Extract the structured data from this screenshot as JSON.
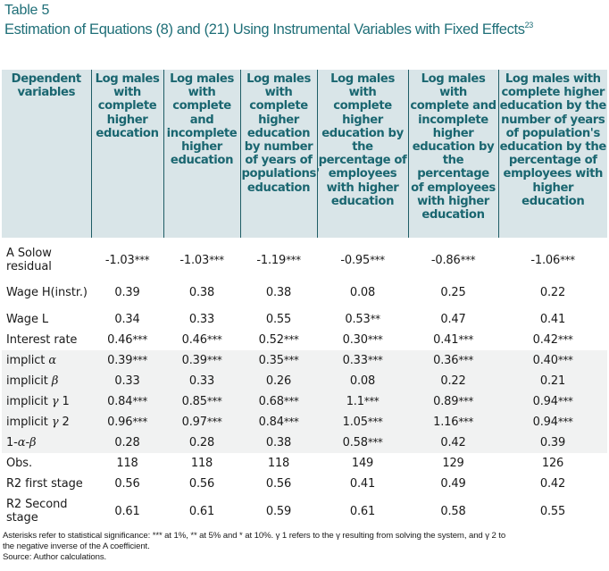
{
  "title": {
    "label": "Table 5",
    "caption": "Estimation of Equations (8) and (21) Using Instrumental Variables with Fixed Effects",
    "footnote_ref": "23"
  },
  "colors": {
    "title_text": "#1f6f78",
    "header_bg": "#d9e5e8",
    "header_text": "#1a6670",
    "header_divider": "#1f5d66",
    "shaded_row_bg": "#f1f2f2"
  },
  "table": {
    "headers": [
      "Dependent variables",
      "Log males with complete higher education",
      "Log males with complete and incomplete higher education",
      "Log males with complete higher education by number of years of populations' education",
      "Log males with complete higher education by the percentage of employees with higher education",
      "Log males with complete and incomplete higher education by the percentage of employees with higher education",
      "Log males with complete higher education by the number of years of population's education by the percentage of employees with higher education"
    ],
    "rows": [
      {
        "label": "A Solow residual",
        "values": [
          "-1.03***",
          "-1.03***",
          "-1.19***",
          "-0.95***",
          "-0.86***",
          "-1.06***"
        ]
      },
      {
        "label": "Wage H(instr.)",
        "values": [
          "0.39",
          "0.38",
          "0.38",
          "0.08",
          "0.25",
          "0.22"
        ]
      },
      {
        "label": "Wage L",
        "values": [
          "0.34",
          "0.33",
          "0.55",
          "0.53**",
          "0.47",
          "0.41"
        ]
      },
      {
        "label": "Interest rate",
        "values": [
          "0.46***",
          "0.46***",
          "0.52***",
          "0.30***",
          "0.41***",
          "0.42***"
        ]
      },
      {
        "label": "implict α",
        "values": [
          "0.39***",
          "0.39***",
          "0.35***",
          "0.33***",
          "0.36***",
          "0.40***"
        ]
      },
      {
        "label": "implicit β",
        "values": [
          "0.33",
          "0.33",
          "0.26",
          "0.08",
          "0.22",
          "0.21"
        ]
      },
      {
        "label": "implicit γ 1",
        "values": [
          "0.84***",
          "0.85***",
          "0.68***",
          "1.1***",
          "0.89***",
          "0.94***"
        ]
      },
      {
        "label": "implicit γ 2",
        "values": [
          "0.96***",
          "0.97***",
          "0.84***",
          "1.05***",
          "1.16***",
          "0.94***"
        ]
      },
      {
        "label": "1-α-β",
        "values": [
          "0.28",
          "0.28",
          "0.38",
          "0.58***",
          "0.42",
          "0.39"
        ]
      },
      {
        "label": "Obs.",
        "values": [
          "118",
          "118",
          "118",
          "149",
          "129",
          "126"
        ]
      },
      {
        "label": "R2 first stage",
        "values": [
          "0.56",
          "0.56",
          "0.56",
          "0.41",
          "0.49",
          "0.42"
        ]
      },
      {
        "label": "R2 Second stage",
        "values": [
          "0.61",
          "0.61",
          "0.59",
          "0.61",
          "0.58",
          "0.55"
        ]
      }
    ]
  },
  "notes": {
    "line1": "Asterisks refer to statistical significance: *** at 1%, ** at 5% and * at 10%. γ 1 refers to the γ resulting from solving the system, and γ 2 to",
    "line2": "the negative inverse of the A coefficient.",
    "source": "Source: Author calculations."
  }
}
